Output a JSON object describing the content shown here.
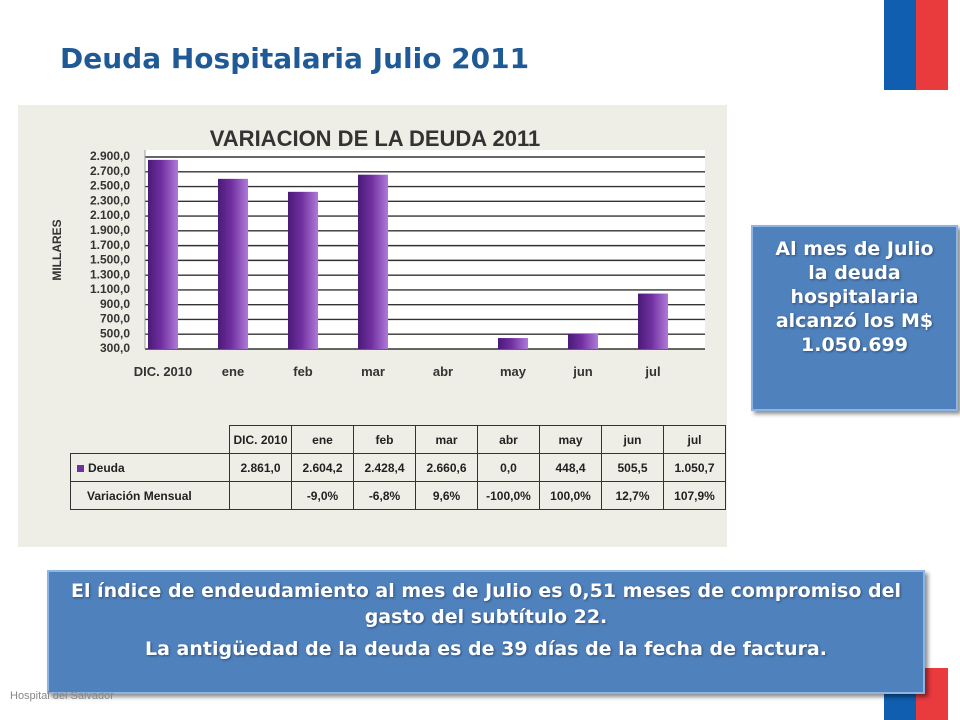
{
  "title": "Deuda Hospitalaria Julio 2011",
  "chart_data": {
    "type": "bar",
    "title": "VARIACION DE LA DEUDA 2011",
    "y_label": "MILLARES",
    "categories": [
      "DIC. 2010",
      "ene",
      "feb",
      "mar",
      "abr",
      "may",
      "jun",
      "jul"
    ],
    "series": [
      {
        "name": "Deuda",
        "color": "#7030a0",
        "values": [
          2861.0,
          2604.2,
          2428.4,
          2660.6,
          0.0,
          448.4,
          505.5,
          1050.7
        ],
        "value_labels": [
          "2.861,0",
          "2.604,2",
          "2.428,4",
          "2.660,6",
          "0,0",
          "448,4",
          "505,5",
          "1.050,7"
        ]
      }
    ],
    "ylim": [
      300,
      2900
    ],
    "yticks": [
      {
        "value": 300,
        "label": "300,0"
      },
      {
        "value": 500,
        "label": "500,0"
      },
      {
        "value": 700,
        "label": "700,0"
      },
      {
        "value": 900,
        "label": "900,0"
      },
      {
        "value": 1100,
        "label": "1.100,0"
      },
      {
        "value": 1300,
        "label": "1.300,0"
      },
      {
        "value": 1500,
        "label": "1.500,0"
      },
      {
        "value": 1700,
        "label": "1.700,0"
      },
      {
        "value": 1900,
        "label": "1.900,0"
      },
      {
        "value": 2100,
        "label": "2.100,0"
      },
      {
        "value": 2300,
        "label": "2.300,0"
      },
      {
        "value": 2500,
        "label": "2.500,0"
      },
      {
        "value": 2700,
        "label": "2.700,0"
      },
      {
        "value": 2900,
        "label": "2.900,0"
      }
    ],
    "grid": true
  },
  "table": {
    "row_label": "Variación Mensual",
    "values": [
      null,
      "-9,0%",
      "-6,8%",
      "9,6%",
      "-100,0%",
      "100,0%",
      "12,7%",
      "107,9%"
    ]
  },
  "callout_right": "Al mes de Julio la deuda hospitalaria alcanzó los M$ 1.050.699",
  "callout_bottom": [
    "El índice de endeudamiento al mes de Julio es 0,51 meses de compromiso del gasto del subtítulo 22.",
    "La antigüedad de la deuda es de 39 días de la fecha de factura."
  ],
  "footer": "Hospital del Salvador"
}
